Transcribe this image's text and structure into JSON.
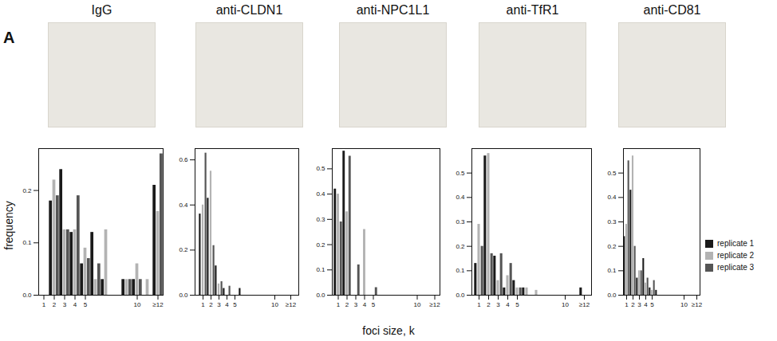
{
  "panel_label": "A",
  "xlabel": "foci size, k",
  "ylabel": "frequency",
  "chart_data": [
    {
      "type": "bar",
      "title": "IgG",
      "categories": [
        "1",
        "2",
        "3",
        "4",
        "5",
        null,
        null,
        null,
        null,
        "10",
        null,
        "≥12"
      ],
      "ylim": [
        0,
        0.28
      ],
      "yticks": [
        {
          "value": 0,
          "label": "0.0"
        },
        {
          "value": 0.1,
          "label": "0.1"
        },
        {
          "value": 0.2,
          "label": "0.2"
        }
      ],
      "series": [
        {
          "name": "replicate 1",
          "color": "#1a1a1a",
          "values": [
            0,
            0.18,
            0.24,
            0.12,
            0.06,
            0.12,
            0.03,
            0,
            0.03,
            0.03,
            0,
            0.21
          ]
        },
        {
          "name": "replicate 2",
          "color": "#b3b3b3",
          "values": [
            0,
            0.22,
            0.125,
            0.125,
            0.09,
            0.03,
            0.125,
            0,
            0.03,
            0.06,
            0.03,
            0.16
          ]
        },
        {
          "name": "replicate 3",
          "color": "#555555",
          "values": [
            0,
            0.19,
            0.125,
            0.19,
            0.07,
            0.06,
            0,
            0,
            0.03,
            0.03,
            0,
            0.27
          ]
        }
      ]
    },
    {
      "type": "bar",
      "title": "anti-CLDN1",
      "categories": [
        "1",
        "2",
        "3",
        "4",
        "5",
        null,
        null,
        null,
        null,
        "10",
        null,
        "≥12"
      ],
      "ylim": [
        0,
        0.65
      ],
      "yticks": [
        {
          "value": 0,
          "label": "0.0"
        },
        {
          "value": 0.2,
          "label": "0.2"
        },
        {
          "value": 0.4,
          "label": "0.4"
        },
        {
          "value": 0.6,
          "label": "0.6"
        }
      ],
      "series": [
        {
          "name": "replicate 1",
          "color": "#1a1a1a",
          "values": [
            0.36,
            0.43,
            0.13,
            0.03,
            0,
            0.03,
            0,
            0,
            0,
            0,
            0,
            0
          ]
        },
        {
          "name": "replicate 2",
          "color": "#b3b3b3",
          "values": [
            0.4,
            0.55,
            0.05,
            0,
            0,
            0,
            0,
            0,
            0,
            0,
            0,
            0
          ]
        },
        {
          "name": "replicate 3",
          "color": "#555555",
          "values": [
            0.63,
            0.22,
            0.06,
            0.04,
            0,
            0,
            0,
            0,
            0,
            0,
            0,
            0
          ]
        }
      ]
    },
    {
      "type": "bar",
      "title": "anti-NPC1L1",
      "categories": [
        "1",
        "2",
        "3",
        "4",
        "5",
        null,
        null,
        null,
        null,
        "10",
        null,
        "≥12"
      ],
      "ylim": [
        0,
        0.58
      ],
      "yticks": [
        {
          "value": 0,
          "label": "0.0"
        },
        {
          "value": 0.1,
          "label": "0.1"
        },
        {
          "value": 0.2,
          "label": "0.2"
        },
        {
          "value": 0.3,
          "label": "0.3"
        },
        {
          "value": 0.4,
          "label": "0.4"
        },
        {
          "value": 0.5,
          "label": "0.5"
        }
      ],
      "series": [
        {
          "name": "replicate 1",
          "color": "#1a1a1a",
          "values": [
            0.42,
            0.57,
            0,
            0,
            0,
            0,
            0,
            0,
            0,
            0,
            0,
            0
          ]
        },
        {
          "name": "replicate 2",
          "color": "#b3b3b3",
          "values": [
            0.4,
            0.33,
            0,
            0.26,
            0,
            0,
            0,
            0,
            0,
            0,
            0,
            0
          ]
        },
        {
          "name": "replicate 3",
          "color": "#555555",
          "values": [
            0.29,
            0.55,
            0.12,
            0,
            0.03,
            0,
            0,
            0,
            0,
            0,
            0,
            0
          ]
        }
      ]
    },
    {
      "type": "bar",
      "title": "anti-TfR1",
      "categories": [
        "1",
        "2",
        "3",
        "4",
        "5",
        null,
        null,
        null,
        null,
        "10",
        null,
        "≥12"
      ],
      "ylim": [
        0,
        0.6
      ],
      "yticks": [
        {
          "value": 0,
          "label": "0.0"
        },
        {
          "value": 0.1,
          "label": "0.1"
        },
        {
          "value": 0.2,
          "label": "0.2"
        },
        {
          "value": 0.3,
          "label": "0.3"
        },
        {
          "value": 0.4,
          "label": "0.4"
        },
        {
          "value": 0.5,
          "label": "0.5"
        }
      ],
      "series": [
        {
          "name": "replicate 1",
          "color": "#1a1a1a",
          "values": [
            0.13,
            0.57,
            0.16,
            0.03,
            0.06,
            0.03,
            0,
            0,
            0,
            0,
            0,
            0.03
          ]
        },
        {
          "name": "replicate 2",
          "color": "#b3b3b3",
          "values": [
            0.29,
            0.58,
            0.06,
            0.08,
            0.03,
            0.03,
            0.02,
            0,
            0,
            0,
            0,
            0
          ]
        },
        {
          "name": "replicate 3",
          "color": "#555555",
          "values": [
            0.2,
            0.17,
            0.17,
            0.13,
            0.03,
            0,
            0,
            0,
            0,
            0,
            0,
            0
          ]
        }
      ]
    },
    {
      "type": "bar",
      "title": "anti-CD81",
      "categories": [
        "1",
        "2",
        "3",
        "4",
        "5",
        null,
        null,
        null,
        null,
        "10",
        null,
        "≥12"
      ],
      "ylim": [
        0,
        0.6
      ],
      "yticks": [
        {
          "value": 0,
          "label": "0.0"
        },
        {
          "value": 0.1,
          "label": "0.1"
        },
        {
          "value": 0.2,
          "label": "0.2"
        },
        {
          "value": 0.3,
          "label": "0.3"
        },
        {
          "value": 0.4,
          "label": "0.4"
        },
        {
          "value": 0.5,
          "label": "0.5"
        }
      ],
      "legend": "right",
      "series": [
        {
          "name": "replicate 1",
          "color": "#1a1a1a",
          "values": [
            0.24,
            0.43,
            0.07,
            0.15,
            0.03,
            0.02,
            0,
            0,
            0,
            0,
            0,
            0
          ]
        },
        {
          "name": "replicate 2",
          "color": "#b3b3b3",
          "values": [
            0.29,
            0.57,
            0.1,
            0.05,
            0.02,
            0,
            0,
            0,
            0,
            0,
            0,
            0
          ]
        },
        {
          "name": "replicate 3",
          "color": "#555555",
          "values": [
            0.55,
            0.2,
            0.1,
            0.07,
            0.06,
            0,
            0,
            0,
            0,
            0,
            0,
            0
          ]
        }
      ]
    }
  ]
}
